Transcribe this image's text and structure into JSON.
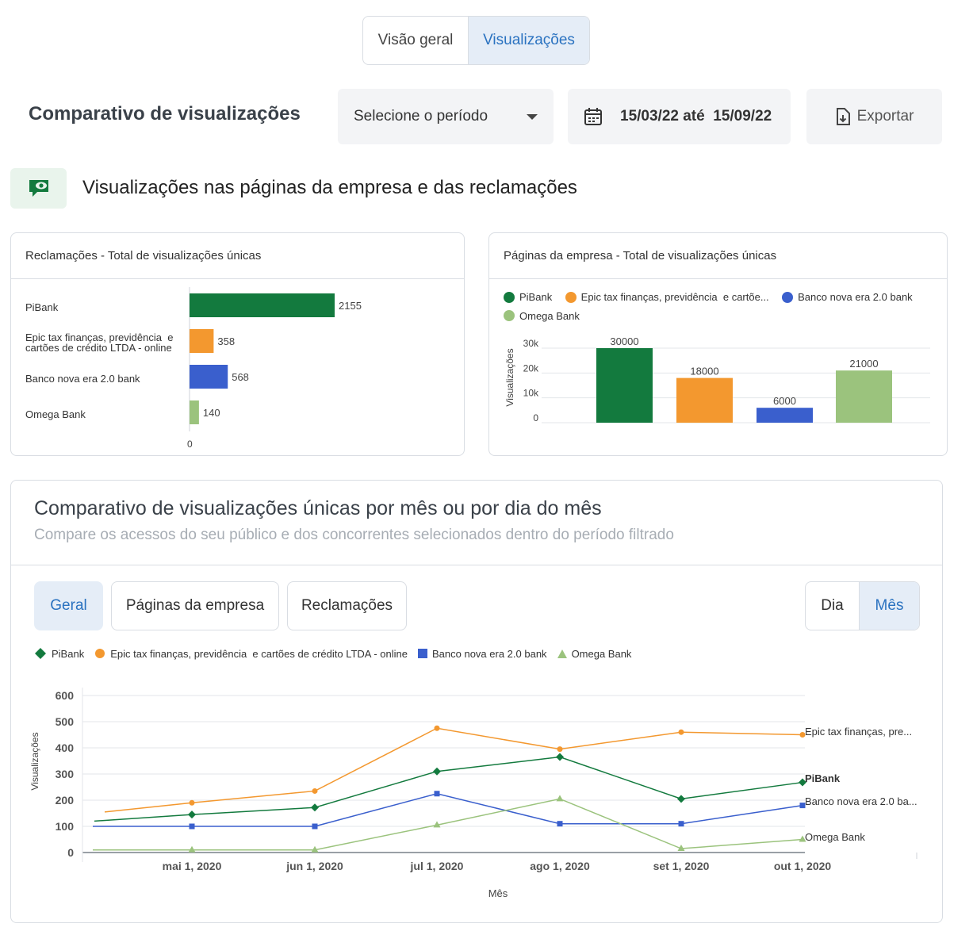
{
  "top_tabs": [
    "Visão geral",
    "Visualizações"
  ],
  "header": {
    "title": "Comparativo de visualizações",
    "period_select": "Selecione o período",
    "date_range": "15/03/22 até  15/09/22",
    "export_label": "Exportar"
  },
  "section": {
    "icon": "eye-chat-icon",
    "title": "Visualizações nas páginas da empresa e das reclamações"
  },
  "colors": {
    "pibank": "#137a3e",
    "epic": "#f3982f",
    "banco": "#3a5fcd",
    "omega": "#9bc37d",
    "accent": "#2a72c0"
  },
  "complaints_card": {
    "title": "Reclamações - Total de visualizações únicas",
    "labels": [
      "PiBank",
      "Epic tax finanças, previdência  e",
      "cartões de crédito LTDA - online",
      "Banco nova era 2.0 bank",
      "Omega Bank"
    ],
    "axis_zero": "0"
  },
  "company_card": {
    "title": "Páginas da empresa - Total de visualizações únicas",
    "legend": [
      "PiBank",
      "Epic tax finanças, previdência  e cartõe...",
      "Banco nova era 2.0 bank",
      "Omega Bank"
    ],
    "ylabel": "Visualizações"
  },
  "monthly_card": {
    "title": "Comparativo de visualizações únicas por mês ou por dia do mês",
    "subtitle": "Compare os acessos do seu público e dos concorrentes selecionados dentro do período filtrado",
    "filters": [
      "Geral",
      "Páginas da empresa",
      "Reclamações"
    ],
    "granularity": [
      "Dia",
      "Mês"
    ],
    "legend": [
      "PiBank",
      "Epic tax finanças, previdência  e cartões de crédito LTDA - online",
      "Banco nova era 2.0 bank",
      "Omega Bank"
    ],
    "end_labels": [
      "Epic tax finanças, pre...",
      "PiBank",
      "Banco nova era 2.0 ba...",
      "Omega Bank"
    ],
    "xlabel": "Mês",
    "ylabel": "Visualizações"
  },
  "chart_data": [
    {
      "type": "bar",
      "orientation": "horizontal",
      "title": "Reclamações - Total de visualizações únicas",
      "categories": [
        "PiBank",
        "Epic tax finanças, previdência  e cartões de crédito LTDA - online",
        "Banco nova era 2.0 bank",
        "Omega Bank"
      ],
      "values": [
        2155,
        358,
        568,
        140
      ],
      "xlim": [
        0,
        2155
      ]
    },
    {
      "type": "bar",
      "title": "Páginas da empresa - Total de visualizações únicas",
      "categories": [
        "PiBank",
        "Epic tax finanças, previdência  e cartõe...",
        "Banco nova era 2.0 bank",
        "Omega Bank"
      ],
      "values": [
        30000,
        18000,
        6000,
        21000
      ],
      "ylabel": "Visualizações",
      "yticks": [
        "0",
        "10k",
        "20k",
        "30k"
      ],
      "ylim": [
        0,
        30000
      ],
      "legend": "top-left"
    },
    {
      "type": "line",
      "xlabel": "Mês",
      "ylabel": "Visualizações",
      "x": [
        "mai 1, 2020",
        "jun 1, 2020",
        "jul 1, 2020",
        "ago 1, 2020",
        "set 1, 2020",
        "out 1, 2020"
      ],
      "yticks": [
        0,
        100,
        200,
        300,
        400,
        500,
        600
      ],
      "ylim": [
        0,
        600
      ],
      "grid": true,
      "series": [
        {
          "name": "PiBank",
          "marker": "diamond",
          "start": 120,
          "values": [
            145,
            172,
            310,
            365,
            205,
            268
          ]
        },
        {
          "name": "Epic tax finanças, previdência  e cartões de crédito LTDA - online",
          "marker": "circle",
          "start": 155,
          "values": [
            190,
            235,
            475,
            395,
            460,
            450
          ]
        },
        {
          "name": "Banco nova era 2.0 bank",
          "marker": "square",
          "start": 100,
          "values": [
            100,
            100,
            225,
            110,
            110,
            180
          ]
        },
        {
          "name": "Omega Bank",
          "marker": "triangle",
          "start": 10,
          "values": [
            10,
            10,
            105,
            205,
            15,
            50
          ]
        }
      ]
    }
  ]
}
